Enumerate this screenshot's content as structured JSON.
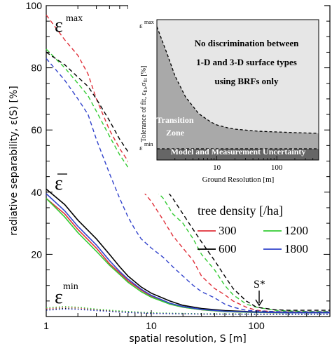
{
  "chart_data": {
    "type": "line",
    "xlabel": "spatial resolution, S [m]",
    "ylabel": "radiative separability, ε(S) [%]",
    "xscale": "log",
    "xlim": [
      1,
      500
    ],
    "ylim": [
      0,
      100
    ],
    "xticks": [
      1,
      10,
      100
    ],
    "yticks": [
      20,
      40,
      60,
      80,
      100
    ],
    "grid": false,
    "legend": {
      "title": "tree density [/ha]",
      "placement": "center-right",
      "entries": [
        {
          "label": "300",
          "color": "#e0303a"
        },
        {
          "label": "1200",
          "color": "#33cc33"
        },
        {
          "label": "600",
          "color": "#000000"
        },
        {
          "label": "1800",
          "color": "#3344cc"
        }
      ]
    },
    "annotations": {
      "emax": "max",
      "emean": "ε",
      "emin": "min",
      "sstar": "S*"
    },
    "series": [
      {
        "name": "300",
        "group": "max",
        "style": "dashed",
        "color": "#e0303a",
        "points": [
          [
            1,
            97
          ],
          [
            1.5,
            89
          ],
          [
            2,
            84
          ],
          [
            2.5,
            78
          ],
          [
            3,
            70
          ],
          [
            4,
            60
          ],
          [
            5,
            54
          ],
          [
            6,
            50
          ],
          [
            7,
            45
          ],
          [
            8,
            41
          ],
          [
            10,
            37
          ],
          [
            13,
            31
          ],
          [
            16,
            26
          ],
          [
            20,
            22
          ],
          [
            25,
            18
          ],
          [
            30,
            13
          ],
          [
            40,
            9
          ],
          [
            50,
            7
          ],
          [
            60,
            5
          ],
          [
            80,
            3
          ],
          [
            100,
            2
          ],
          [
            150,
            1.5
          ],
          [
            200,
            1.5
          ],
          [
            300,
            1.4
          ],
          [
            500,
            1.4
          ]
        ]
      },
      {
        "name": "1200",
        "group": "max",
        "style": "dashed",
        "color": "#33cc33",
        "points": [
          [
            1,
            86
          ],
          [
            1.5,
            80
          ],
          [
            2,
            75
          ],
          [
            2.5,
            71
          ],
          [
            3,
            66
          ],
          [
            4,
            58
          ],
          [
            5,
            52
          ],
          [
            6,
            48
          ],
          [
            7,
            45
          ],
          [
            8,
            43
          ],
          [
            10,
            42
          ],
          [
            13,
            38
          ],
          [
            16,
            33
          ],
          [
            20,
            30
          ],
          [
            25,
            25
          ],
          [
            30,
            20
          ],
          [
            40,
            15
          ],
          [
            50,
            10
          ],
          [
            60,
            7
          ],
          [
            80,
            4
          ],
          [
            100,
            3
          ],
          [
            150,
            2
          ],
          [
            200,
            1.8
          ],
          [
            300,
            1.6
          ],
          [
            500,
            1.6
          ]
        ]
      },
      {
        "name": "600",
        "group": "max",
        "style": "dashed",
        "color": "#000000",
        "points": [
          [
            1,
            85
          ],
          [
            1.5,
            81
          ],
          [
            2,
            77
          ],
          [
            2.5,
            74
          ],
          [
            3,
            70
          ],
          [
            4,
            63
          ],
          [
            5,
            57
          ],
          [
            6,
            53
          ],
          [
            7,
            50
          ],
          [
            8,
            48
          ],
          [
            10,
            46
          ],
          [
            13,
            42
          ],
          [
            16,
            38
          ],
          [
            20,
            33
          ],
          [
            25,
            28
          ],
          [
            30,
            24
          ],
          [
            40,
            18
          ],
          [
            50,
            13
          ],
          [
            60,
            9
          ],
          [
            80,
            5
          ],
          [
            100,
            3
          ],
          [
            150,
            2.2
          ],
          [
            200,
            2
          ],
          [
            300,
            2
          ],
          [
            500,
            2
          ]
        ]
      },
      {
        "name": "1800",
        "group": "max",
        "style": "dashed",
        "color": "#3344cc",
        "points": [
          [
            1,
            83
          ],
          [
            1.5,
            76
          ],
          [
            2,
            70
          ],
          [
            2.5,
            65
          ],
          [
            3,
            57
          ],
          [
            4,
            46
          ],
          [
            5,
            38
          ],
          [
            6,
            32
          ],
          [
            7,
            28
          ],
          [
            8,
            25
          ],
          [
            10,
            22
          ],
          [
            13,
            19
          ],
          [
            16,
            16
          ],
          [
            20,
            13
          ],
          [
            25,
            10
          ],
          [
            30,
            8
          ],
          [
            40,
            6
          ],
          [
            50,
            4
          ],
          [
            60,
            3
          ],
          [
            80,
            2
          ],
          [
            100,
            1.8
          ],
          [
            150,
            1.6
          ],
          [
            200,
            1.5
          ],
          [
            300,
            1.5
          ],
          [
            500,
            1.5
          ]
        ]
      },
      {
        "name": "300",
        "group": "mean",
        "style": "solid",
        "color": "#e0303a",
        "points": [
          [
            1,
            38
          ],
          [
            1.5,
            33
          ],
          [
            2,
            28
          ],
          [
            3,
            22
          ],
          [
            4,
            17
          ],
          [
            5,
            14
          ],
          [
            6,
            11.5
          ],
          [
            8,
            8.5
          ],
          [
            10,
            6.5
          ],
          [
            15,
            4
          ],
          [
            20,
            3
          ],
          [
            30,
            2.2
          ],
          [
            50,
            1.6
          ],
          [
            100,
            1.3
          ],
          [
            200,
            1.2
          ],
          [
            500,
            1.2
          ]
        ]
      },
      {
        "name": "1200",
        "group": "mean",
        "style": "solid",
        "color": "#33cc33",
        "points": [
          [
            1,
            38
          ],
          [
            1.5,
            32
          ],
          [
            2,
            27
          ],
          [
            3,
            21
          ],
          [
            4,
            16.5
          ],
          [
            5,
            13.5
          ],
          [
            6,
            11
          ],
          [
            8,
            8
          ],
          [
            10,
            6.2
          ],
          [
            15,
            4
          ],
          [
            20,
            3
          ],
          [
            30,
            2.2
          ],
          [
            50,
            1.6
          ],
          [
            100,
            1.3
          ],
          [
            200,
            1.2
          ],
          [
            500,
            1.2
          ]
        ]
      },
      {
        "name": "600",
        "group": "mean",
        "style": "solid",
        "color": "#000000",
        "points": [
          [
            1,
            41
          ],
          [
            1.5,
            36
          ],
          [
            2,
            31
          ],
          [
            3,
            25
          ],
          [
            4,
            20
          ],
          [
            5,
            16
          ],
          [
            6,
            13
          ],
          [
            8,
            9.5
          ],
          [
            10,
            7.5
          ],
          [
            15,
            5
          ],
          [
            20,
            3.6
          ],
          [
            30,
            2.6
          ],
          [
            50,
            1.9
          ],
          [
            100,
            1.5
          ],
          [
            200,
            1.3
          ],
          [
            500,
            1.3
          ]
        ]
      },
      {
        "name": "1800",
        "group": "mean",
        "style": "solid",
        "color": "#3344cc",
        "points": [
          [
            1,
            39.5
          ],
          [
            1.5,
            34
          ],
          [
            2,
            29
          ],
          [
            3,
            23
          ],
          [
            4,
            18
          ],
          [
            5,
            14.5
          ],
          [
            6,
            12
          ],
          [
            8,
            8.8
          ],
          [
            10,
            6.8
          ],
          [
            15,
            4.3
          ],
          [
            20,
            3.2
          ],
          [
            30,
            2.3
          ],
          [
            50,
            1.7
          ],
          [
            100,
            1.4
          ],
          [
            200,
            1.2
          ],
          [
            500,
            1.2
          ]
        ]
      },
      {
        "name": "300",
        "group": "min",
        "style": "dotted",
        "color": "#e0303a",
        "points": [
          [
            1,
            2.5
          ],
          [
            1.5,
            3
          ],
          [
            2,
            2.8
          ],
          [
            3,
            2.2
          ],
          [
            5,
            1.6
          ],
          [
            10,
            1.1
          ],
          [
            30,
            0.8
          ],
          [
            100,
            0.7
          ],
          [
            500,
            0.7
          ]
        ]
      },
      {
        "name": "1200",
        "group": "min",
        "style": "dotted",
        "color": "#33cc33",
        "points": [
          [
            1,
            2.8
          ],
          [
            1.5,
            3.2
          ],
          [
            2,
            3
          ],
          [
            3,
            2.4
          ],
          [
            5,
            1.8
          ],
          [
            10,
            1.2
          ],
          [
            30,
            0.9
          ],
          [
            100,
            0.8
          ],
          [
            500,
            0.8
          ]
        ]
      },
      {
        "name": "600",
        "group": "min",
        "style": "dotted",
        "color": "#000000",
        "points": [
          [
            1,
            2.2
          ],
          [
            1.5,
            2.6
          ],
          [
            2,
            2.4
          ],
          [
            3,
            2
          ],
          [
            5,
            1.5
          ],
          [
            10,
            1
          ],
          [
            30,
            0.8
          ],
          [
            100,
            0.7
          ],
          [
            500,
            0.7
          ]
        ]
      },
      {
        "name": "1800",
        "group": "min",
        "style": "dotted",
        "color": "#3344cc",
        "points": [
          [
            1,
            2
          ],
          [
            1.5,
            2.4
          ],
          [
            2,
            2.3
          ],
          [
            3,
            1.9
          ],
          [
            5,
            1.4
          ],
          [
            10,
            1
          ],
          [
            30,
            0.8
          ],
          [
            100,
            0.7
          ],
          [
            500,
            0.7
          ]
        ]
      }
    ],
    "inset": {
      "type": "area",
      "xlabel": "Ground Resolution  [m]",
      "ylabel": "Tolerance of fit, ε",
      "ylabel_sub": "fit",
      "ylabel_mid": ",σ",
      "ylabel_sub2": "fit",
      "ylabel_tail": " [%]",
      "xscale": "log",
      "xlim": [
        1,
        500
      ],
      "ylim": [
        0,
        100
      ],
      "xticks": [
        10,
        100
      ],
      "ytick_max": "max",
      "ytick_min": "min",
      "epsilon": "ε",
      "regions": {
        "top_lines": [
          "No discrimination between",
          "1-D and 3-D surface types",
          "using BRFs only"
        ],
        "transition_lines": [
          "Transition",
          "Zone"
        ],
        "bottom": "Model and Measurement Uncertainty"
      },
      "boundary": [
        [
          1,
          95
        ],
        [
          1.5,
          75
        ],
        [
          2,
          60
        ],
        [
          3,
          45
        ],
        [
          5,
          33
        ],
        [
          8,
          27
        ],
        [
          10,
          25
        ],
        [
          15,
          23
        ],
        [
          20,
          22
        ],
        [
          50,
          20.5
        ],
        [
          100,
          20
        ],
        [
          200,
          19.5
        ],
        [
          500,
          19
        ]
      ],
      "baseline": 8
    }
  }
}
